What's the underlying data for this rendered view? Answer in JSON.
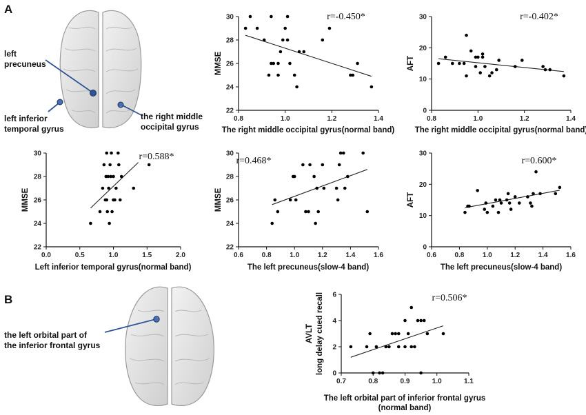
{
  "panels": {
    "a": "A",
    "b": "B"
  },
  "brain_labels": {
    "left_precuneus": [
      "left",
      "precuneus"
    ],
    "left_inferior_temporal": [
      "left inferior",
      "temporal gyrus"
    ],
    "right_middle_occipital": [
      "the right middle",
      "occipital gyrus"
    ],
    "left_orbital": [
      "the left orbital part of",
      "the inferior frontal gyrus"
    ]
  },
  "colors": {
    "marker": "#2f5597",
    "brain_fill": "#e2e2e2",
    "brain_stroke": "#9a9a9a"
  },
  "chart_data": [
    {
      "id": "c1",
      "type": "scatter",
      "title": "",
      "r_text": "r=-0.450*",
      "xlabel": "The right middle occipital gyrus(normal band)",
      "ylabel": "MMSE",
      "xlim": [
        0.8,
        1.4
      ],
      "ylim": [
        22,
        30
      ],
      "xticks": [
        "0.8",
        "1.0",
        "1.2",
        "1.4"
      ],
      "yticks": [
        "22",
        "24",
        "26",
        "28",
        "30"
      ],
      "points": [
        [
          0.83,
          29
        ],
        [
          0.85,
          30
        ],
        [
          0.88,
          29
        ],
        [
          0.91,
          28
        ],
        [
          0.93,
          25
        ],
        [
          0.94,
          30
        ],
        [
          0.94,
          26
        ],
        [
          0.95,
          26
        ],
        [
          0.97,
          25
        ],
        [
          0.97,
          26
        ],
        [
          0.98,
          27
        ],
        [
          0.99,
          28
        ],
        [
          1.0,
          29
        ],
        [
          1.01,
          30
        ],
        [
          1.01,
          28
        ],
        [
          1.02,
          26
        ],
        [
          1.04,
          25
        ],
        [
          1.05,
          24
        ],
        [
          1.06,
          27
        ],
        [
          1.08,
          27
        ],
        [
          1.16,
          28
        ],
        [
          1.19,
          29
        ],
        [
          1.28,
          25
        ],
        [
          1.29,
          25
        ],
        [
          1.31,
          26
        ],
        [
          1.37,
          24
        ]
      ],
      "fit": [
        [
          0.83,
          28.4
        ],
        [
          1.37,
          24.9
        ]
      ]
    },
    {
      "id": "c2",
      "type": "scatter",
      "title": "",
      "r_text": "r=-0.402*",
      "xlabel": "The right middle occipital gyrus(normal band)",
      "ylabel": "AFT",
      "xlim": [
        0.8,
        1.4
      ],
      "ylim": [
        0,
        30
      ],
      "xticks": [
        "0.8",
        "1.0",
        "1.2",
        "1.4"
      ],
      "yticks": [
        "0",
        "10",
        "20",
        "30"
      ],
      "points": [
        [
          0.83,
          15
        ],
        [
          0.86,
          17
        ],
        [
          0.89,
          15
        ],
        [
          0.92,
          15
        ],
        [
          0.94,
          15
        ],
        [
          0.95,
          24
        ],
        [
          0.95,
          11
        ],
        [
          0.97,
          19
        ],
        [
          0.99,
          17
        ],
        [
          0.99,
          14
        ],
        [
          1.0,
          17
        ],
        [
          1.01,
          12
        ],
        [
          1.02,
          17
        ],
        [
          1.02,
          18
        ],
        [
          1.03,
          14
        ],
        [
          1.05,
          11
        ],
        [
          1.06,
          12
        ],
        [
          1.08,
          13
        ],
        [
          1.09,
          16
        ],
        [
          1.16,
          14
        ],
        [
          1.19,
          16
        ],
        [
          1.28,
          14
        ],
        [
          1.29,
          13
        ],
        [
          1.31,
          13
        ],
        [
          1.37,
          11
        ]
      ],
      "fit": [
        [
          0.83,
          16.5
        ],
        [
          1.37,
          12.4
        ]
      ]
    },
    {
      "id": "c3",
      "type": "scatter",
      "title": "",
      "r_text": "r=0.588*",
      "xlabel": "Left inferior temporal gyrus(normal band)",
      "ylabel": "MMSE",
      "xlim": [
        0.0,
        2.0
      ],
      "ylim": [
        22,
        30
      ],
      "xticks": [
        "0.0",
        "0.5",
        "1.0",
        "1.5",
        "2.0"
      ],
      "yticks": [
        "22",
        "24",
        "26",
        "28",
        "30"
      ],
      "points": [
        [
          0.66,
          24
        ],
        [
          0.8,
          25
        ],
        [
          0.84,
          27
        ],
        [
          0.86,
          29
        ],
        [
          0.88,
          26
        ],
        [
          0.89,
          28
        ],
        [
          0.9,
          30
        ],
        [
          0.9,
          26
        ],
        [
          0.91,
          25
        ],
        [
          0.92,
          28
        ],
        [
          0.93,
          27
        ],
        [
          0.94,
          24
        ],
        [
          0.95,
          29
        ],
        [
          0.96,
          28
        ],
        [
          0.97,
          30
        ],
        [
          0.98,
          25
        ],
        [
          1.0,
          28
        ],
        [
          1.0,
          26
        ],
        [
          1.02,
          26
        ],
        [
          1.04,
          27
        ],
        [
          1.07,
          30
        ],
        [
          1.08,
          29
        ],
        [
          1.1,
          26
        ],
        [
          1.12,
          28
        ],
        [
          1.3,
          27
        ],
        [
          1.53,
          29
        ]
      ],
      "fit": [
        [
          0.66,
          25.3
        ],
        [
          1.37,
          29.2
        ]
      ]
    },
    {
      "id": "c4",
      "type": "scatter",
      "title": "",
      "r_text": "r=0.468*",
      "xlabel": "The left precuneus(slow-4 band)",
      "ylabel": "MMSE",
      "xlim": [
        0.6,
        1.6
      ],
      "ylim": [
        22,
        30
      ],
      "xticks": [
        "0.6",
        "0.8",
        "1.0",
        "1.2",
        "1.4",
        "1.6"
      ],
      "yticks": [
        "22",
        "24",
        "26",
        "28",
        "30"
      ],
      "points": [
        [
          0.84,
          24
        ],
        [
          0.86,
          26
        ],
        [
          0.88,
          25
        ],
        [
          0.97,
          26
        ],
        [
          0.99,
          28
        ],
        [
          1.0,
          28
        ],
        [
          1.01,
          26
        ],
        [
          1.06,
          29
        ],
        [
          1.08,
          25
        ],
        [
          1.1,
          25
        ],
        [
          1.11,
          29
        ],
        [
          1.14,
          28
        ],
        [
          1.15,
          24
        ],
        [
          1.16,
          27
        ],
        [
          1.17,
          25
        ],
        [
          1.2,
          29
        ],
        [
          1.21,
          27
        ],
        [
          1.3,
          27
        ],
        [
          1.31,
          26
        ],
        [
          1.32,
          29
        ],
        [
          1.33,
          30
        ],
        [
          1.35,
          30
        ],
        [
          1.36,
          27
        ],
        [
          1.38,
          28
        ],
        [
          1.49,
          30
        ],
        [
          1.52,
          25
        ]
      ],
      "fit": [
        [
          0.84,
          25.6
        ],
        [
          1.52,
          28.6
        ]
      ]
    },
    {
      "id": "c5",
      "type": "scatter",
      "title": "",
      "r_text": "r=0.600*",
      "xlabel": "The left precuneus(slow-4 band)",
      "ylabel": "AFT",
      "xlim": [
        0.6,
        1.6
      ],
      "ylim": [
        0,
        30
      ],
      "xticks": [
        "0.6",
        "0.8",
        "1.0",
        "1.2",
        "1.4",
        "1.6"
      ],
      "yticks": [
        "0",
        "10",
        "20",
        "30"
      ],
      "points": [
        [
          0.84,
          11
        ],
        [
          0.86,
          13
        ],
        [
          0.87,
          13
        ],
        [
          0.93,
          18
        ],
        [
          0.98,
          12
        ],
        [
          0.99,
          14
        ],
        [
          1.0,
          11
        ],
        [
          1.04,
          13
        ],
        [
          1.06,
          15
        ],
        [
          1.08,
          11
        ],
        [
          1.09,
          15
        ],
        [
          1.1,
          14
        ],
        [
          1.14,
          15
        ],
        [
          1.15,
          17
        ],
        [
          1.16,
          14
        ],
        [
          1.17,
          12
        ],
        [
          1.2,
          16
        ],
        [
          1.23,
          14
        ],
        [
          1.29,
          16
        ],
        [
          1.31,
          14
        ],
        [
          1.32,
          13
        ],
        [
          1.33,
          17
        ],
        [
          1.35,
          24
        ],
        [
          1.38,
          17
        ],
        [
          1.49,
          17
        ],
        [
          1.52,
          19
        ]
      ],
      "fit": [
        [
          0.84,
          12.5
        ],
        [
          1.52,
          18.1
        ]
      ]
    },
    {
      "id": "c6",
      "type": "scatter",
      "title": "",
      "r_text": "r=0.506*",
      "xlabel": [
        "The left orbital part of inferior frontal gyrus",
        "(normal band)"
      ],
      "ylabel": [
        "AVLT",
        "long delay cued recall"
      ],
      "xlim": [
        0.7,
        1.1
      ],
      "ylim": [
        0,
        6
      ],
      "xticks": [
        "0.7",
        "0.8",
        "0.9",
        "1.0",
        "1.1"
      ],
      "yticks": [
        "0",
        "2",
        "4",
        "6"
      ],
      "points": [
        [
          0.73,
          2
        ],
        [
          0.78,
          2
        ],
        [
          0.79,
          3
        ],
        [
          0.8,
          0
        ],
        [
          0.81,
          2
        ],
        [
          0.82,
          0
        ],
        [
          0.83,
          0
        ],
        [
          0.84,
          2
        ],
        [
          0.85,
          2
        ],
        [
          0.86,
          3
        ],
        [
          0.87,
          3
        ],
        [
          0.88,
          3
        ],
        [
          0.88,
          2
        ],
        [
          0.9,
          2
        ],
        [
          0.9,
          4
        ],
        [
          0.91,
          3
        ],
        [
          0.92,
          2
        ],
        [
          0.92,
          5
        ],
        [
          0.93,
          2
        ],
        [
          0.94,
          4
        ],
        [
          0.95,
          4
        ],
        [
          0.96,
          4
        ],
        [
          0.95,
          0
        ],
        [
          0.97,
          3
        ],
        [
          1.02,
          3
        ]
      ],
      "fit": [
        [
          0.73,
          1.2
        ],
        [
          1.02,
          3.6
        ]
      ]
    }
  ]
}
